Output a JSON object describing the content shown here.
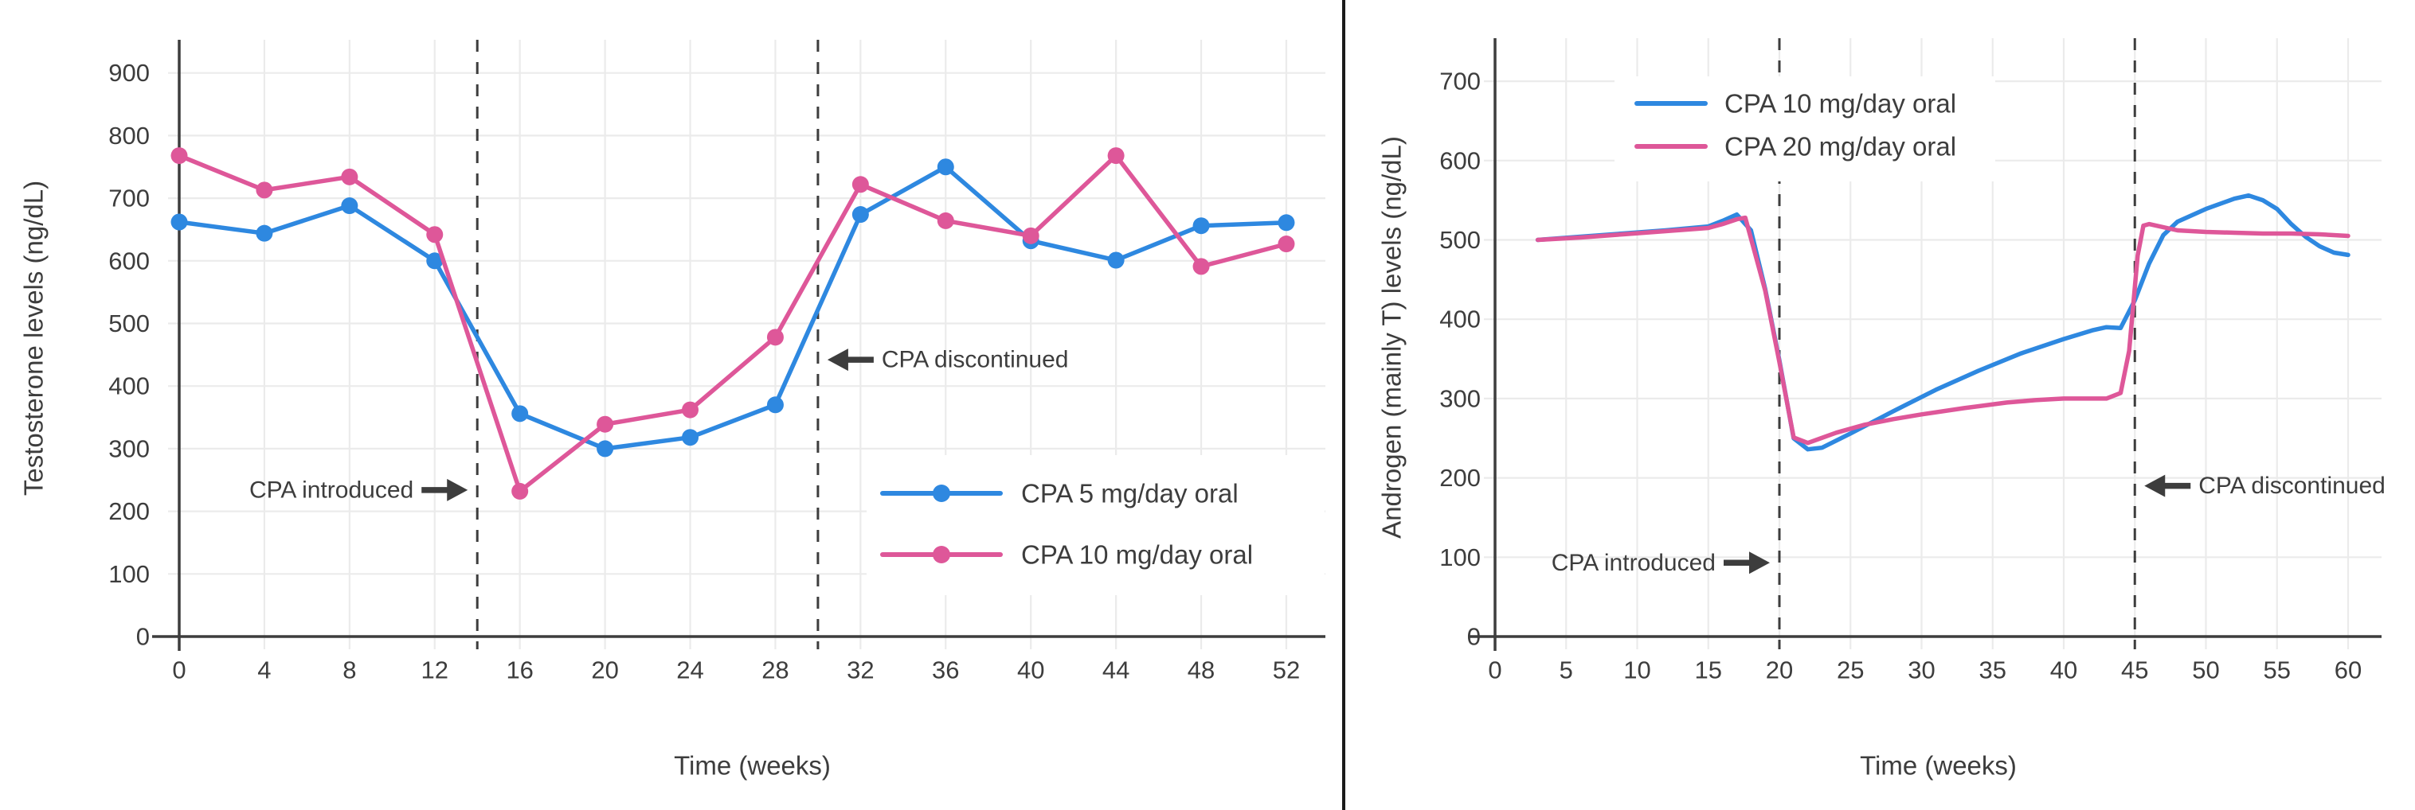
{
  "colors": {
    "blue": "#2E88E0",
    "pink": "#DE5799",
    "axis": "#3D3D3D",
    "text": "#3D3D3D",
    "grid": "#EBEBEB",
    "dashed": "#3D3D3D",
    "annotation": "#3D3D3D",
    "background": "#FFFFFF",
    "divider": "#1A1A1A"
  },
  "chart_data": [
    {
      "type": "line",
      "title": "",
      "xlabel": "Time (weeks)",
      "ylabel": "Testosterone levels (ng/dL)",
      "xlim": [
        0,
        53.8
      ],
      "ylim": [
        0,
        953
      ],
      "xticks": [
        0,
        4,
        8,
        12,
        16,
        20,
        24,
        28,
        32,
        36,
        40,
        44,
        48,
        52
      ],
      "yticks": [
        0,
        100,
        200,
        300,
        400,
        500,
        600,
        700,
        800,
        900
      ],
      "grid": true,
      "markers": true,
      "legend_position": "lower right",
      "vlines": [
        {
          "x": 14,
          "label": "CPA introduced",
          "label_y": 234,
          "side": "left"
        },
        {
          "x": 30,
          "label": "CPA discontinued",
          "label_y": 442,
          "side": "right"
        }
      ],
      "series": [
        {
          "name": "CPA 5 mg/day oral",
          "color_key": "blue",
          "x": [
            0,
            4,
            8,
            12,
            16,
            20,
            24,
            28,
            32,
            36,
            40,
            44,
            48,
            52
          ],
          "y": [
            662,
            644,
            688,
            600,
            356,
            300,
            318,
            370,
            674,
            750,
            632,
            601,
            656,
            661
          ]
        },
        {
          "name": "CPA 10 mg/day oral",
          "color_key": "pink",
          "x": [
            0,
            4,
            8,
            12,
            16,
            20,
            24,
            28,
            32,
            36,
            40,
            44,
            48,
            52
          ],
          "y": [
            768,
            713,
            734,
            642,
            232,
            339,
            362,
            478,
            722,
            664,
            640,
            768,
            591,
            627
          ]
        }
      ]
    },
    {
      "type": "line",
      "title": "",
      "xlabel": "Time (weeks)",
      "ylabel": "Androgen (mainly T) levels (ng/dL)",
      "xlim": [
        0,
        62.3
      ],
      "ylim": [
        0,
        752
      ],
      "xticks": [
        0,
        5,
        10,
        15,
        20,
        25,
        30,
        35,
        40,
        45,
        50,
        55,
        60
      ],
      "yticks": [
        0,
        100,
        200,
        300,
        400,
        500,
        600,
        700
      ],
      "grid": true,
      "markers": false,
      "legend_position": "upper left",
      "vlines": [
        {
          "x": 20,
          "label": "CPA introduced",
          "label_y": 93,
          "side": "left"
        },
        {
          "x": 45,
          "label": "CPA discontinued",
          "label_y": 190,
          "side": "right"
        }
      ],
      "series": [
        {
          "name": "CPA 10 mg/day oral",
          "color_key": "blue",
          "x": [
            3,
            6,
            9,
            12,
            15,
            16,
            17,
            18,
            19,
            20,
            21,
            22,
            23,
            25,
            28,
            31,
            34,
            37,
            40,
            42,
            43,
            44,
            45,
            46,
            47,
            48,
            50,
            52,
            53,
            54,
            55,
            56,
            57,
            58,
            59,
            60
          ],
          "y": [
            500,
            504,
            508,
            512,
            517,
            524,
            532,
            512,
            438,
            348,
            250,
            236,
            238,
            256,
            284,
            311,
            335,
            357,
            375,
            386,
            390,
            389,
            424,
            470,
            506,
            523,
            539,
            552,
            556,
            550,
            539,
            520,
            504,
            492,
            484,
            481
          ]
        },
        {
          "name": "CPA 20 mg/day oral",
          "color_key": "pink",
          "x": [
            3,
            6,
            9,
            12,
            15,
            16,
            17,
            17.6,
            19,
            20,
            21,
            22,
            24,
            26,
            28,
            30,
            33,
            36,
            38,
            40,
            42,
            43,
            44,
            44.6,
            45.2,
            45.6,
            46,
            48,
            50,
            52,
            54,
            56,
            58,
            60
          ],
          "y": [
            500,
            503,
            507,
            511,
            515,
            520,
            526,
            528,
            436,
            346,
            251,
            244,
            257,
            267,
            274,
            280,
            288,
            295,
            298,
            300,
            300,
            300,
            307,
            360,
            480,
            518,
            520,
            512,
            510,
            509,
            508,
            508,
            507,
            505
          ]
        }
      ]
    }
  ]
}
